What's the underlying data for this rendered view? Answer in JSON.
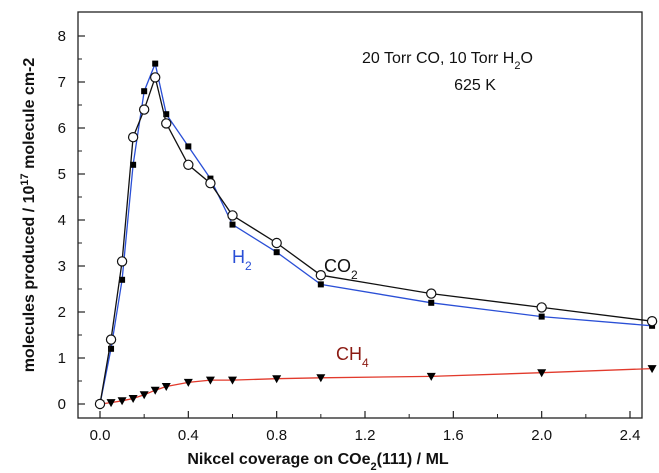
{
  "chart_data": {
    "type": "line",
    "title": "",
    "xlabel": "Nikcel coverage on COe2(111) / ML",
    "xlabel_parts": {
      "before": "Nikcel coverage on COe",
      "sub": "2",
      "after": "(111) / ML"
    },
    "ylabel": "molecules produced / 10^17 molecule cm-2",
    "ylabel_parts": {
      "before": "molecules produced / 10",
      "sup": "17",
      "after": " molecule cm-2"
    },
    "xlim": [
      0,
      2.5
    ],
    "ylim": [
      0,
      8
    ],
    "x_ticks": [
      "0.0",
      "0.4",
      "0.8",
      "1.2",
      "1.6",
      "2.0",
      "2.4"
    ],
    "y_ticks": [
      "0",
      "1",
      "2",
      "3",
      "4",
      "5",
      "6",
      "7",
      "8"
    ],
    "grid": false,
    "annotations": {
      "line1_before": "20 Torr CO, 10 Torr H",
      "line1_sub": "2",
      "line1_after": "O",
      "line2": "625 K"
    },
    "series": [
      {
        "name": "CO2",
        "label_base": "CO",
        "label_sub": "2",
        "color": "#111111",
        "marker": "open-circle",
        "points": [
          [
            0.0,
            0.0
          ],
          [
            0.05,
            1.4
          ],
          [
            0.1,
            3.1
          ],
          [
            0.15,
            5.8
          ],
          [
            0.2,
            6.4
          ],
          [
            0.25,
            7.1
          ],
          [
            0.3,
            6.1
          ],
          [
            0.4,
            5.2
          ],
          [
            0.5,
            4.8
          ],
          [
            0.6,
            4.1
          ],
          [
            0.8,
            3.5
          ],
          [
            1.0,
            2.8
          ],
          [
            1.5,
            2.4
          ],
          [
            2.0,
            2.1
          ],
          [
            2.5,
            1.8
          ]
        ]
      },
      {
        "name": "H2",
        "label_base": "H",
        "label_sub": "2",
        "color": "#2a4fd6",
        "marker": "filled-square",
        "points": [
          [
            0.0,
            0.0
          ],
          [
            0.05,
            1.2
          ],
          [
            0.1,
            2.7
          ],
          [
            0.15,
            5.2
          ],
          [
            0.2,
            6.8
          ],
          [
            0.25,
            7.4
          ],
          [
            0.3,
            6.3
          ],
          [
            0.4,
            5.6
          ],
          [
            0.5,
            4.9
          ],
          [
            0.6,
            3.9
          ],
          [
            0.8,
            3.3
          ],
          [
            1.0,
            2.6
          ],
          [
            1.5,
            2.2
          ],
          [
            2.0,
            1.9
          ],
          [
            2.5,
            1.7
          ]
        ]
      },
      {
        "name": "CH4",
        "label_base": "CH",
        "label_sub": "4",
        "color": "#e23a2c",
        "label_color": "#8b1a12",
        "marker": "filled-triangle-down",
        "points": [
          [
            0.0,
            0.0
          ],
          [
            0.05,
            0.03
          ],
          [
            0.1,
            0.07
          ],
          [
            0.15,
            0.12
          ],
          [
            0.2,
            0.2
          ],
          [
            0.25,
            0.3
          ],
          [
            0.3,
            0.38
          ],
          [
            0.4,
            0.47
          ],
          [
            0.5,
            0.52
          ],
          [
            0.6,
            0.52
          ],
          [
            0.8,
            0.55
          ],
          [
            1.0,
            0.57
          ],
          [
            1.5,
            0.6
          ],
          [
            2.0,
            0.68
          ],
          [
            2.5,
            0.77
          ]
        ]
      }
    ]
  }
}
